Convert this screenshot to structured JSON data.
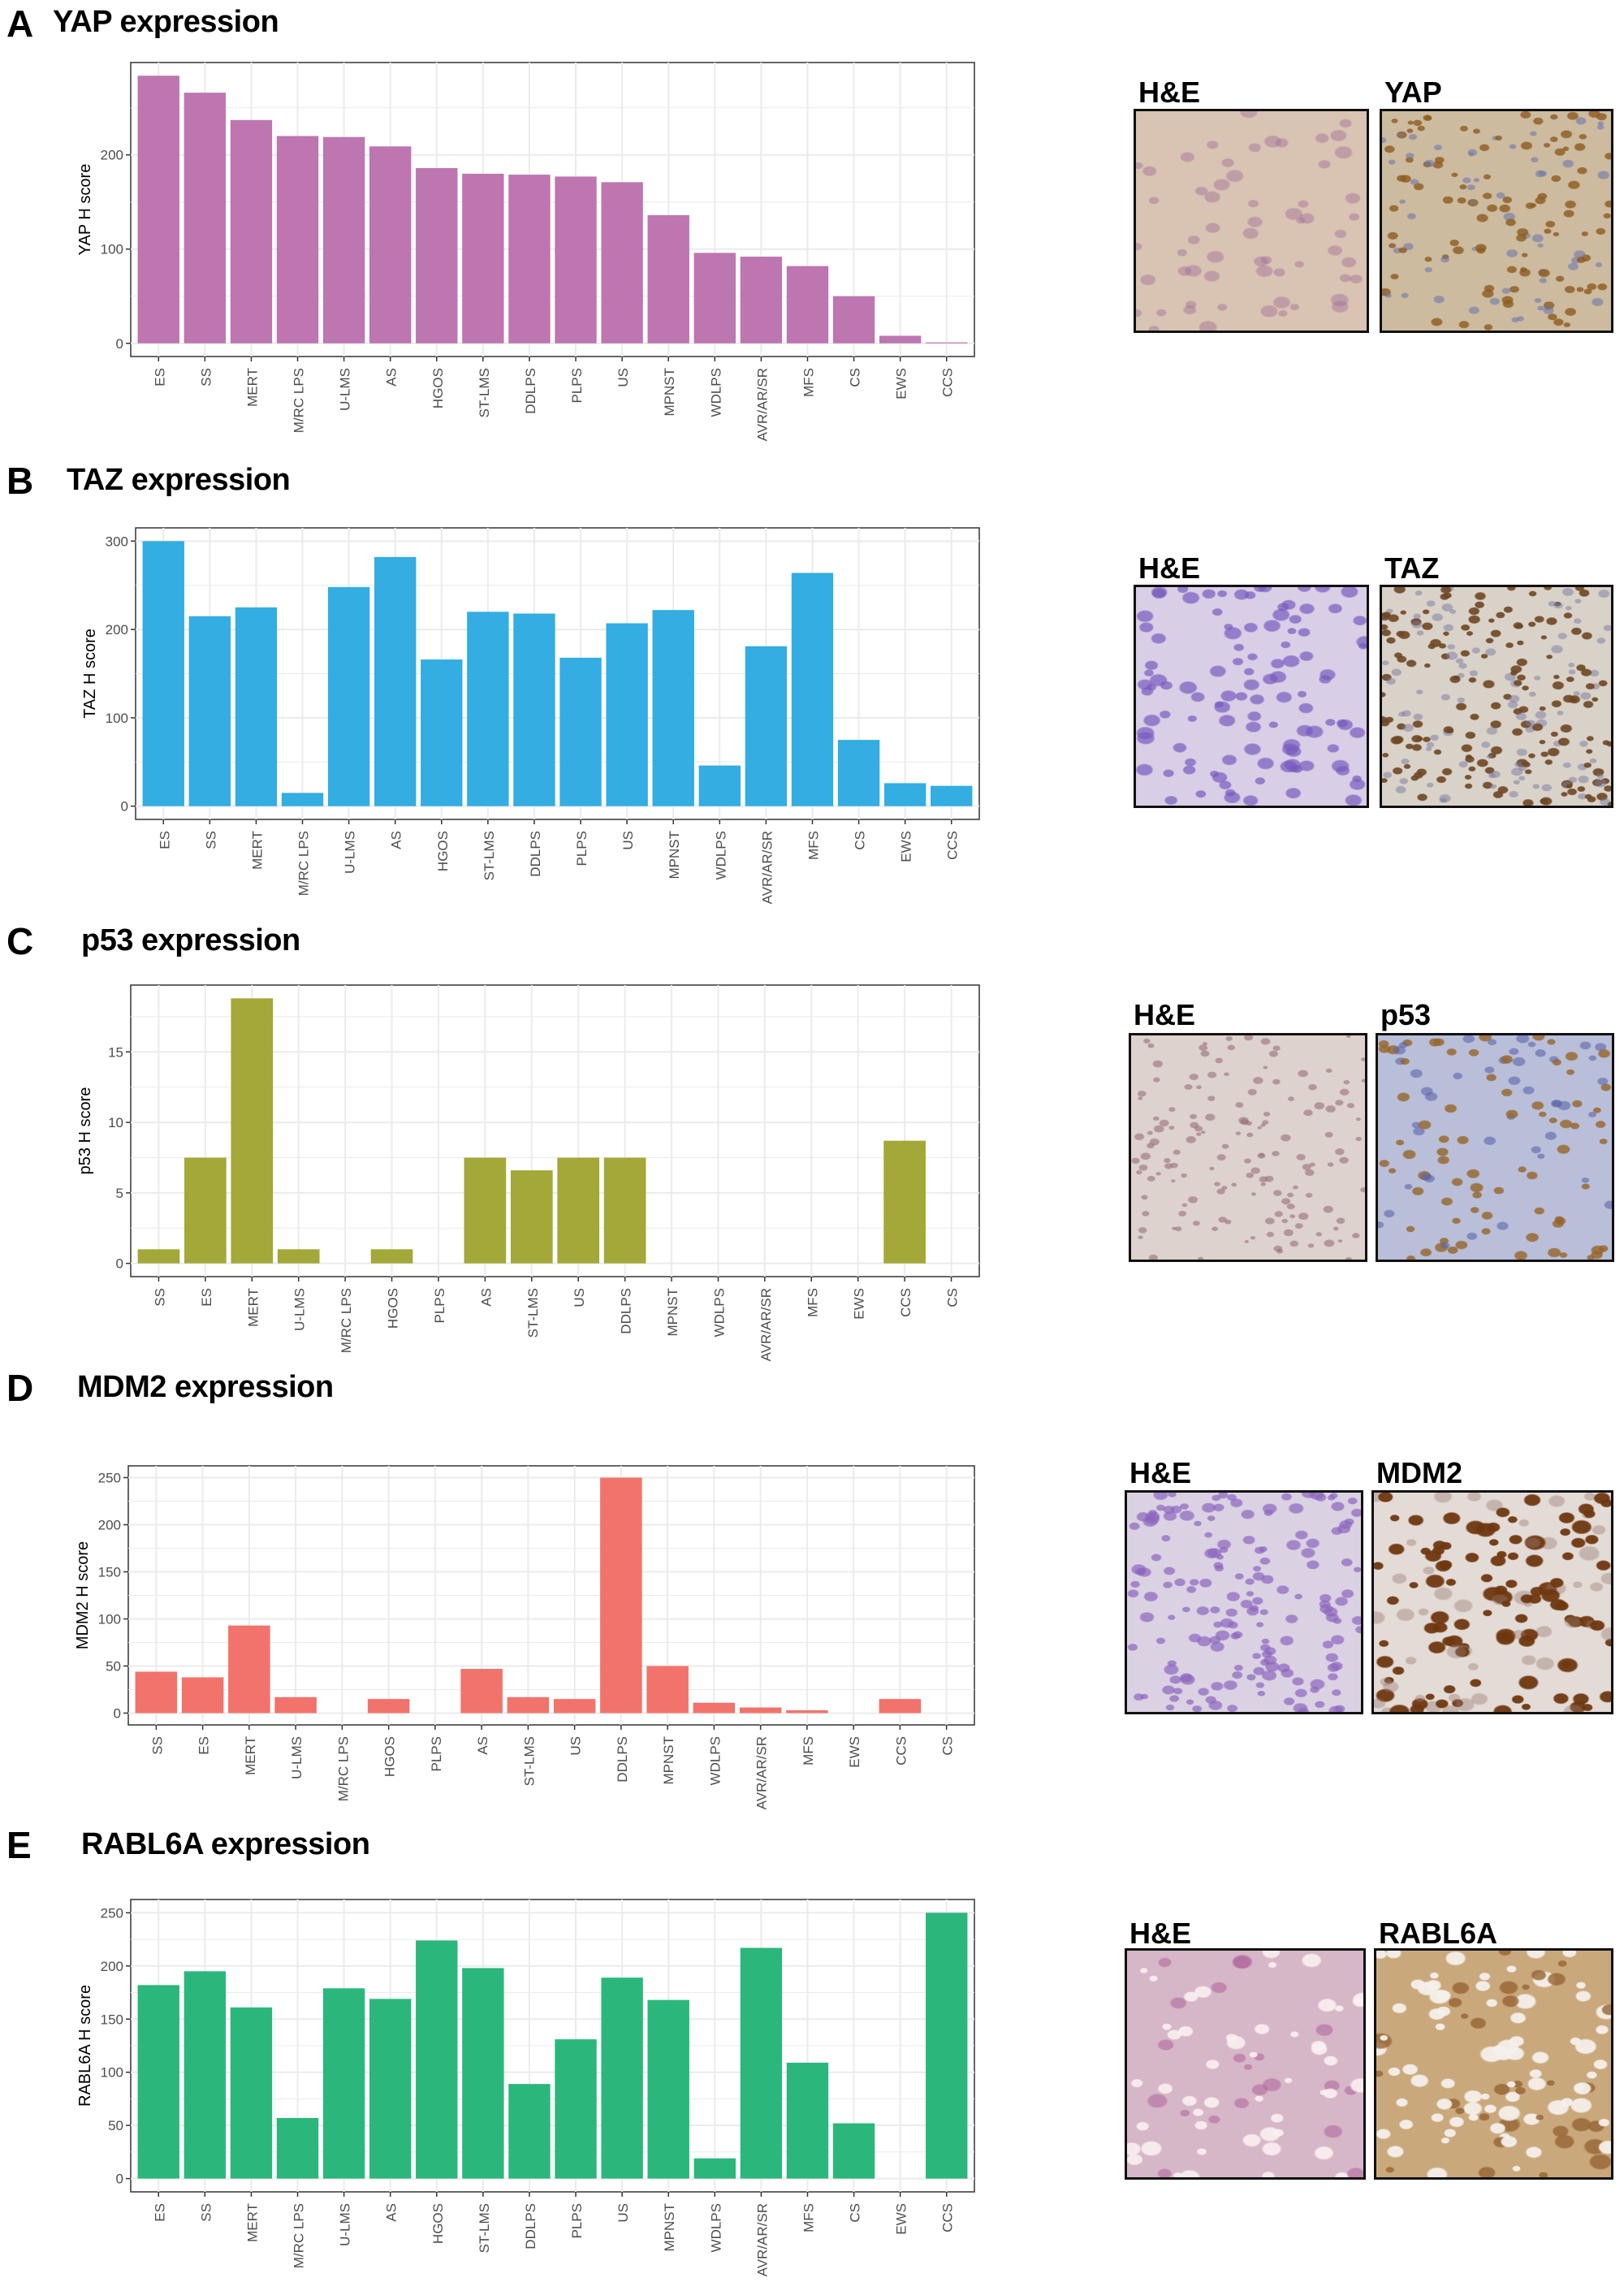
{
  "panels": [
    {
      "letter": "A",
      "title": "YAP expression",
      "image_labels": [
        "H&E",
        "YAP"
      ]
    },
    {
      "letter": "B",
      "title": "TAZ expression",
      "image_labels": [
        "H&E",
        "TAZ"
      ]
    },
    {
      "letter": "C",
      "title": "p53 expression",
      "image_labels": [
        "H&E",
        "p53"
      ]
    },
    {
      "letter": "D",
      "title": "MDM2 expression",
      "image_labels": [
        "H&E",
        "MDM2"
      ]
    },
    {
      "letter": "E",
      "title": "RABL6A expression",
      "image_labels": [
        "H&E",
        "RABL6A"
      ]
    }
  ],
  "chart_data": [
    {
      "type": "bar",
      "ylabel": "YAP  H score",
      "color": "#bd76b0",
      "categories": [
        "ES",
        "SS",
        "MERT",
        "M/RC LPS",
        "U-LMS",
        "AS",
        "HGOS",
        "ST-LMS",
        "DDLPS",
        "PLPS",
        "US",
        "MPNST",
        "WDLPS",
        "AVR/AR/SR",
        "MFS",
        "CS",
        "EWS",
        "CCS"
      ],
      "values": [
        284,
        266,
        237,
        220,
        219,
        209,
        186,
        180,
        179,
        177,
        171,
        136,
        96,
        92,
        82,
        50,
        8,
        1
      ],
      "yticks": [
        0,
        100,
        200
      ],
      "ylim": [
        -14,
        298
      ],
      "grid": true
    },
    {
      "type": "bar",
      "ylabel": "TAZ  H score",
      "color": "#33ade2",
      "categories": [
        "ES",
        "SS",
        "MERT",
        "M/RC LPS",
        "U-LMS",
        "AS",
        "HGOS",
        "ST-LMS",
        "DDLPS",
        "PLPS",
        "US",
        "MPNST",
        "WDLPS",
        "AVR/AR/SR",
        "MFS",
        "CS",
        "EWS",
        "CCS"
      ],
      "values": [
        300,
        215,
        225,
        15,
        248,
        282,
        166,
        220,
        218,
        168,
        207,
        222,
        46,
        181,
        264,
        75,
        26,
        23
      ],
      "yticks": [
        0,
        100,
        200,
        300
      ],
      "ylim": [
        -15,
        315
      ],
      "grid": true
    },
    {
      "type": "bar",
      "ylabel": "p53   H score",
      "color": "#a3a838",
      "categories": [
        "SS",
        "ES",
        "MERT",
        "U-LMS",
        "M/RC LPS",
        "HGOS",
        "PLPS",
        "AS",
        "ST-LMS",
        "US",
        "DDLPS",
        "MPNST",
        "WDLPS",
        "AVR/AR/SR",
        "MFS",
        "EWS",
        "CCS",
        "CS"
      ],
      "values": [
        1,
        7.5,
        18.8,
        1,
        0,
        1,
        0,
        7.5,
        6.6,
        7.5,
        7.5,
        0,
        0,
        0,
        0,
        0,
        8.7,
        0
      ],
      "yticks": [
        0,
        5,
        10,
        15
      ],
      "ylim": [
        -0.94,
        19.74
      ],
      "grid": true
    },
    {
      "type": "bar",
      "ylabel": "MDM2   H score",
      "color": "#f1736b",
      "categories": [
        "SS",
        "ES",
        "MERT",
        "U-LMS",
        "M/RC LPS",
        "HGOS",
        "PLPS",
        "AS",
        "ST-LMS",
        "US",
        "DDLPS",
        "MPNST",
        "WDLPS",
        "AVR/AR/SR",
        "MFS",
        "EWS",
        "CCS",
        "CS"
      ],
      "values": [
        44,
        38,
        93,
        17,
        0,
        15,
        0,
        47,
        17,
        15,
        250,
        50,
        11,
        6,
        3,
        0,
        15,
        0
      ],
      "yticks": [
        0,
        50,
        100,
        150,
        200,
        250
      ],
      "ylim": [
        -12.5,
        262.5
      ],
      "grid": true
    },
    {
      "type": "bar",
      "ylabel": "RABL6A   H score",
      "color": "#2bb77c",
      "categories": [
        "ES",
        "SS",
        "MERT",
        "M/RC LPS",
        "U-LMS",
        "AS",
        "HGOS",
        "ST-LMS",
        "DDLPS",
        "PLPS",
        "US",
        "MPNST",
        "WDLPS",
        "AVR/AR/SR",
        "MFS",
        "CS",
        "EWS",
        "CCS"
      ],
      "values": [
        182,
        195,
        161,
        57,
        179,
        169,
        224,
        198,
        89,
        131,
        189,
        168,
        19,
        217,
        109,
        52,
        0,
        250
      ],
      "yticks": [
        0,
        50,
        100,
        150,
        200,
        250
      ],
      "ylim": [
        -12.5,
        262.5
      ],
      "grid": true
    }
  ]
}
